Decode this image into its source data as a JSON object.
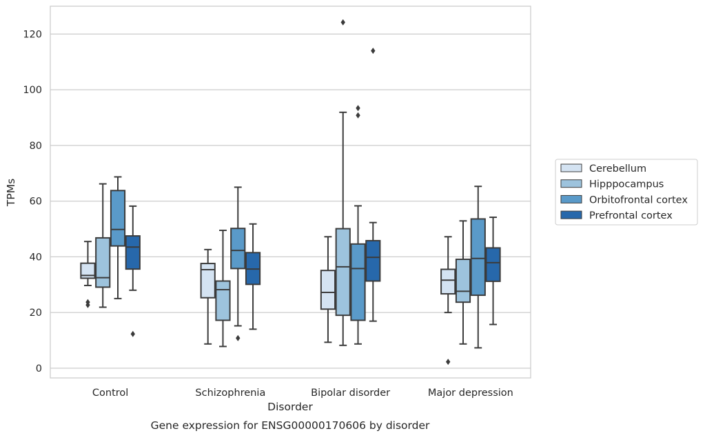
{
  "chart_data": {
    "type": "box",
    "xlabel": "Disorder",
    "ylabel": "TPMs",
    "caption": "Gene expression for ENSG00000170606 by disorder",
    "categories": [
      "Control",
      "Schizophrenia",
      "Bipolar disorder",
      "Major depression"
    ],
    "ylim": [
      -3.5,
      130
    ],
    "yticks": [
      0,
      20,
      40,
      60,
      80,
      100,
      120
    ],
    "grid": "horizontal",
    "legend_position": "right",
    "series": [
      {
        "name": "Cerebellum",
        "color": "#d4e3f2",
        "boxes": [
          {
            "whisker_low": 29.7,
            "q1": 32.3,
            "median": 33.3,
            "q3": 37.7,
            "whisker_high": 45.5,
            "outliers": [
              22.7,
              23.7
            ]
          },
          {
            "whisker_low": 8.7,
            "q1": 25.3,
            "median": 35.4,
            "q3": 37.6,
            "whisker_high": 42.6,
            "outliers": []
          },
          {
            "whisker_low": 9.3,
            "q1": 21.2,
            "median": 27.2,
            "q3": 35.1,
            "whisker_high": 47.2,
            "outliers": []
          },
          {
            "whisker_low": 20.0,
            "q1": 26.7,
            "median": 31.6,
            "q3": 35.5,
            "whisker_high": 47.2,
            "outliers": [
              2.3
            ]
          }
        ]
      },
      {
        "name": "Hipppocampus",
        "color": "#9dc3dd",
        "boxes": [
          {
            "whisker_low": 21.9,
            "q1": 29.1,
            "median": 32.5,
            "q3": 46.8,
            "whisker_high": 66.2,
            "outliers": []
          },
          {
            "whisker_low": 7.8,
            "q1": 17.2,
            "median": 28.2,
            "q3": 31.3,
            "whisker_high": 49.5,
            "outliers": []
          },
          {
            "whisker_low": 8.2,
            "q1": 19.0,
            "median": 36.4,
            "q3": 50.1,
            "whisker_high": 91.9,
            "outliers": [
              124.2
            ]
          },
          {
            "whisker_low": 8.7,
            "q1": 23.7,
            "median": 27.6,
            "q3": 39.1,
            "whisker_high": 52.9,
            "outliers": []
          }
        ]
      },
      {
        "name": "Orbitofrontal cortex",
        "color": "#5a9ac9",
        "boxes": [
          {
            "whisker_low": 25.0,
            "q1": 43.9,
            "median": 49.8,
            "q3": 63.8,
            "whisker_high": 68.7,
            "outliers": []
          },
          {
            "whisker_low": 15.2,
            "q1": 35.8,
            "median": 42.3,
            "q3": 50.2,
            "whisker_high": 65.0,
            "outliers": [
              10.8
            ]
          },
          {
            "whisker_low": 8.7,
            "q1": 17.2,
            "median": 35.8,
            "q3": 44.6,
            "whisker_high": 58.3,
            "outliers": [
              90.8,
              93.4
            ]
          },
          {
            "whisker_low": 7.3,
            "q1": 26.2,
            "median": 39.4,
            "q3": 53.6,
            "whisker_high": 65.3,
            "outliers": []
          }
        ]
      },
      {
        "name": "Prefrontal cortex",
        "color": "#2768ab",
        "boxes": [
          {
            "whisker_low": 28.0,
            "q1": 35.6,
            "median": 43.5,
            "q3": 47.5,
            "whisker_high": 58.2,
            "outliers": [
              12.3
            ]
          },
          {
            "whisker_low": 14.0,
            "q1": 30.1,
            "median": 35.6,
            "q3": 41.5,
            "whisker_high": 51.8,
            "outliers": []
          },
          {
            "whisker_low": 16.9,
            "q1": 31.3,
            "median": 39.8,
            "q3": 45.8,
            "whisker_high": 52.3,
            "outliers": [
              114.0
            ]
          },
          {
            "whisker_low": 15.7,
            "q1": 31.2,
            "median": 37.9,
            "q3": 43.2,
            "whisker_high": 54.2,
            "outliers": []
          }
        ]
      }
    ]
  }
}
